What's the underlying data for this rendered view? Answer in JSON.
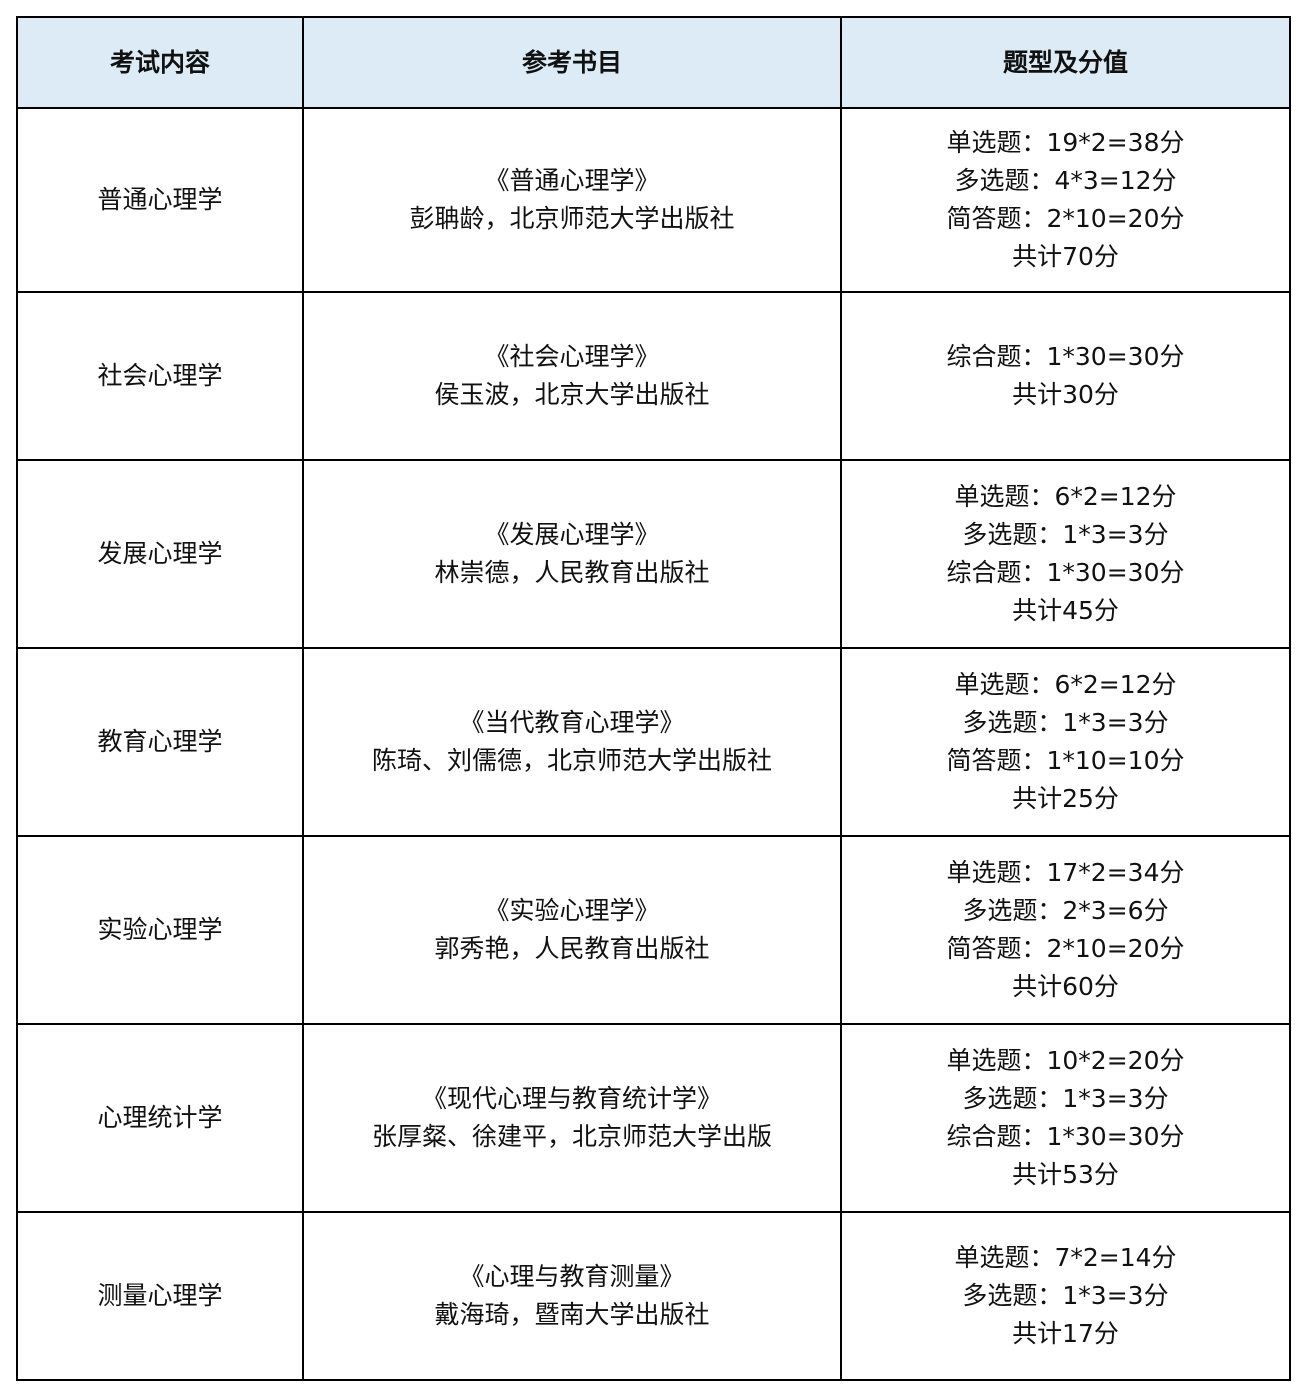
{
  "header": {
    "content": "考试内容",
    "books": "参考书目",
    "scoring": "题型及分值"
  },
  "colors": {
    "header_bg": "#ddebf7",
    "border": "#000000"
  },
  "rows": [
    {
      "subject": "普通心理学",
      "book": [
        "《普通心理学》",
        "彭聃龄，北京师范大学出版社"
      ],
      "scoring": [
        "单选题：19*2=38分",
        "多选题：4*3=12分",
        "简答题：2*10=20分",
        "共计70分"
      ]
    },
    {
      "subject": "社会心理学",
      "book": [
        "《社会心理学》",
        "侯玉波，北京大学出版社"
      ],
      "scoring": [
        "综合题：1*30=30分",
        "共计30分"
      ]
    },
    {
      "subject": "发展心理学",
      "book": [
        "《发展心理学》",
        "林崇德，人民教育出版社"
      ],
      "scoring": [
        "单选题：6*2=12分",
        "多选题：1*3=3分",
        "综合题：1*30=30分",
        "共计45分"
      ]
    },
    {
      "subject": "教育心理学",
      "book": [
        "《当代教育心理学》",
        "陈琦、刘儒德，北京师范大学出版社"
      ],
      "scoring": [
        "单选题：6*2=12分",
        "多选题：1*3=3分",
        "简答题：1*10=10分",
        "共计25分"
      ]
    },
    {
      "subject": "实验心理学",
      "book": [
        "《实验心理学》",
        "郭秀艳，人民教育出版社"
      ],
      "scoring": [
        "单选题：17*2=34分",
        "多选题：2*3=6分",
        "简答题：2*10=20分",
        "共计60分"
      ]
    },
    {
      "subject": "心理统计学",
      "book": [
        "《现代心理与教育统计学》",
        "张厚粲、徐建平，北京师范大学出版"
      ],
      "scoring": [
        "单选题：10*2=20分",
        "多选题：1*3=3分",
        "综合题：1*30=30分",
        "共计53分"
      ]
    },
    {
      "subject": "测量心理学",
      "book": [
        "《心理与教育测量》",
        "戴海琦，暨南大学出版社"
      ],
      "scoring": [
        "单选题：7*2=14分",
        "多选题：1*3=3分",
        "共计17分"
      ]
    }
  ]
}
